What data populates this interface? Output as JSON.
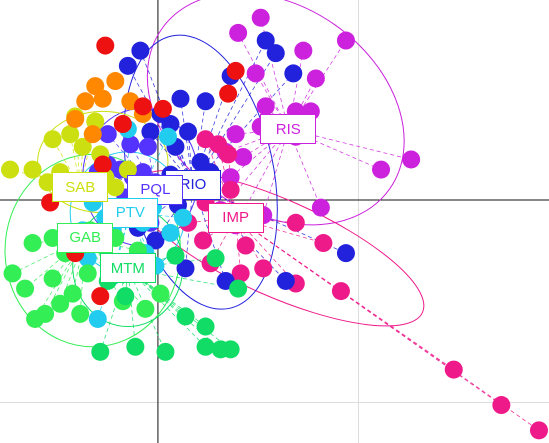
{
  "chart_data": {
    "type": "scatter",
    "title": "",
    "xlabel": "",
    "ylabel": "",
    "xlim": [
      -3.15,
      7.8
    ],
    "ylim": [
      -4.8,
      3.95
    ],
    "origin": [
      0,
      0
    ],
    "grid": {
      "x": [
        4
      ],
      "y": [
        -4,
        4
      ]
    },
    "legend": "none",
    "groups": [
      {
        "label": "RIS",
        "color": "#cc22dd",
        "center": [
          2.6,
          1.4
        ],
        "ellipse": {
          "cx": 2.35,
          "cy": 1.8,
          "rx": 2.05,
          "ry": 2.75,
          "angle": 55
        },
        "points": [
          [
            2.05,
            3.6
          ],
          [
            1.6,
            3.3
          ],
          [
            3.75,
            3.15
          ],
          [
            2.9,
            2.95
          ],
          [
            3.15,
            2.4
          ],
          [
            1.95,
            2.5
          ],
          [
            2.15,
            1.85
          ],
          [
            2.05,
            1.45
          ],
          [
            2.75,
            1.75
          ],
          [
            3.05,
            1.75
          ],
          [
            2.75,
            1.25
          ],
          [
            1.55,
            1.3
          ],
          [
            1.35,
            0.95
          ],
          [
            1.7,
            0.85
          ],
          [
            1.45,
            0.45
          ],
          [
            5.05,
            0.8
          ],
          [
            4.45,
            0.6
          ],
          [
            3.25,
            -0.15
          ],
          [
            2.1,
            -0.3
          ],
          [
            1.55,
            -0.5
          ],
          [
            1.25,
            -0.2
          ]
        ]
      },
      {
        "label": "IMP",
        "color": "#ee1a8a",
        "center": [
          1.55,
          -0.35
        ],
        "ellipse": {
          "cx": 2.4,
          "cy": -0.95,
          "rx": 3.15,
          "ry": 0.95,
          "angle": -24
        },
        "points": [
          [
            0.95,
            -0.05
          ],
          [
            1.35,
            -0.25
          ],
          [
            2.75,
            -0.45
          ],
          [
            3.3,
            -0.85
          ],
          [
            1.75,
            -0.9
          ],
          [
            2.1,
            -1.35
          ],
          [
            1.65,
            -1.45
          ],
          [
            3.65,
            -1.8
          ],
          [
            2.75,
            -1.65
          ],
          [
            1.05,
            -1.25
          ],
          [
            0.9,
            -0.8
          ],
          [
            0.6,
            -0.45
          ],
          [
            1.45,
            0.2
          ],
          [
            0.85,
            0.35
          ],
          [
            1.4,
            0.9
          ],
          [
            1.2,
            1.1
          ],
          [
            0.95,
            1.2
          ],
          [
            5.9,
            -3.35
          ],
          [
            6.85,
            -4.05
          ],
          [
            7.6,
            -4.55
          ]
        ]
      },
      {
        "label": "RIO",
        "color": "#2222dd",
        "center": [
          0.7,
          0.3
        ],
        "ellipse": {
          "cx": 0.85,
          "cy": 0.55,
          "rx": 1.45,
          "ry": 2.75,
          "angle": 12
        },
        "points": [
          [
            2.15,
            3.15
          ],
          [
            2.35,
            2.9
          ],
          [
            2.7,
            2.5
          ],
          [
            -0.6,
            2.65
          ],
          [
            -0.35,
            2.95
          ],
          [
            1.45,
            2.45
          ],
          [
            0.95,
            1.95
          ],
          [
            0.45,
            2.0
          ],
          [
            0.05,
            1.7
          ],
          [
            -0.15,
            1.35
          ],
          [
            0.35,
            1.05
          ],
          [
            0.6,
            1.35
          ],
          [
            0.85,
            0.75
          ],
          [
            1.05,
            0.55
          ],
          [
            0.25,
            0.5
          ],
          [
            -0.1,
            0.3
          ],
          [
            0.4,
            -0.1
          ],
          [
            -0.4,
            -0.55
          ],
          [
            -0.05,
            -0.8
          ],
          [
            0.55,
            -1.35
          ],
          [
            1.35,
            -1.6
          ],
          [
            2.55,
            -1.6
          ],
          [
            3.75,
            -1.05
          ],
          [
            0.25,
            1.5
          ]
        ]
      },
      {
        "label": "PQL",
        "color": "#5533ff",
        "center": [
          -0.05,
          0.2
        ],
        "ellipse": {
          "cx": -0.35,
          "cy": 0.45,
          "rx": 1.15,
          "ry": 1.35,
          "angle": 0
        },
        "points": [
          [
            -1.2,
            0.55
          ],
          [
            -1.0,
            0.7
          ],
          [
            -0.75,
            0.6
          ],
          [
            -0.5,
            0.45
          ],
          [
            -0.3,
            0.55
          ],
          [
            -0.05,
            0.35
          ],
          [
            0.15,
            0.2
          ],
          [
            -0.65,
            0.05
          ],
          [
            -0.35,
            -0.05
          ],
          [
            -0.95,
            -0.25
          ],
          [
            -0.15,
            -0.45
          ],
          [
            -1.0,
            1.3
          ],
          [
            -0.55,
            1.1
          ],
          [
            -0.2,
            1.05
          ]
        ]
      },
      {
        "label": "PTV",
        "color": "#22ccee",
        "center": [
          -0.55,
          -0.25
        ],
        "ellipse": {
          "cx": -0.6,
          "cy": -0.25,
          "rx": 1.15,
          "ry": 1.2,
          "angle": 0
        },
        "points": [
          [
            -1.55,
            0.2
          ],
          [
            -1.3,
            -0.05
          ],
          [
            -1.05,
            -0.35
          ],
          [
            -0.8,
            -0.15
          ],
          [
            -0.55,
            -0.25
          ],
          [
            -0.3,
            -0.45
          ],
          [
            -0.1,
            -0.15
          ],
          [
            -0.9,
            -0.6
          ],
          [
            -1.5,
            -0.6
          ],
          [
            -1.4,
            -1.15
          ],
          [
            -0.85,
            -1.25
          ],
          [
            -0.25,
            -1.05
          ],
          [
            0.25,
            -0.65
          ],
          [
            0.2,
            0.1
          ],
          [
            -0.6,
            1.4
          ],
          [
            0.2,
            1.25
          ],
          [
            -0.9,
            -1.5
          ],
          [
            -1.2,
            -2.35
          ],
          [
            -0.05,
            -1.3
          ],
          [
            0.5,
            -0.35
          ]
        ]
      },
      {
        "label": "SAB",
        "color": "#cce011",
        "center": [
          -1.55,
          0.25
        ],
        "ellipse": {
          "cx": -1.1,
          "cy": 0.75,
          "rx": 1.3,
          "ry": 1.0,
          "angle": 0
        },
        "points": [
          [
            -2.95,
            0.6
          ],
          [
            -2.5,
            0.6
          ],
          [
            -2.2,
            0.35
          ],
          [
            -1.95,
            0.55
          ],
          [
            -1.75,
            1.3
          ],
          [
            -1.5,
            1.05
          ],
          [
            -1.25,
            1.55
          ],
          [
            -1.4,
            0.3
          ],
          [
            -1.05,
            0.45
          ],
          [
            -2.1,
            1.2
          ],
          [
            -1.65,
            1.65
          ],
          [
            -1.15,
            0.9
          ],
          [
            -0.85,
            0.25
          ],
          [
            -0.6,
            0.6
          ]
        ]
      },
      {
        "label": "GAB",
        "color": "#33ee55",
        "center": [
          -1.45,
          -0.75
        ],
        "ellipse": {
          "cx": -1.3,
          "cy": -1.0,
          "rx": 1.75,
          "ry": 1.9,
          "angle": 0
        },
        "points": [
          [
            -2.5,
            -0.85
          ],
          [
            -2.1,
            -0.75
          ],
          [
            -1.85,
            -1.05
          ],
          [
            -1.6,
            -0.8
          ],
          [
            -1.35,
            -0.6
          ],
          [
            -1.1,
            -0.9
          ],
          [
            -0.85,
            -0.75
          ],
          [
            -2.1,
            -1.55
          ],
          [
            -1.7,
            -1.85
          ],
          [
            -1.4,
            -1.45
          ],
          [
            -2.65,
            -1.75
          ],
          [
            -2.9,
            -1.45
          ],
          [
            -0.4,
            -1.0
          ],
          [
            0.05,
            -1.85
          ],
          [
            -0.25,
            -2.15
          ],
          [
            -0.7,
            -2.0
          ],
          [
            -1.55,
            -2.25
          ],
          [
            -1.95,
            -2.05
          ],
          [
            -2.25,
            -2.25
          ],
          [
            -2.45,
            -2.35
          ]
        ]
      },
      {
        "label": "MTM",
        "color": "#11dd66",
        "center": [
          -0.6,
          -1.35
        ],
        "ellipse": {
          "cx": -0.6,
          "cy": -1.3,
          "rx": 1.1,
          "ry": 1.2,
          "angle": 0
        },
        "points": [
          [
            -0.3,
            -1.3
          ],
          [
            0.35,
            -1.1
          ],
          [
            1.15,
            -1.15
          ],
          [
            0.55,
            -2.3
          ],
          [
            0.95,
            -2.5
          ],
          [
            1.6,
            -1.75
          ],
          [
            -0.45,
            -2.9
          ],
          [
            0.15,
            -3.0
          ],
          [
            0.95,
            -2.9
          ],
          [
            1.25,
            -2.95
          ],
          [
            1.45,
            -2.95
          ],
          [
            -1.15,
            -3.0
          ],
          [
            -0.65,
            -1.9
          ],
          [
            -1.0,
            -1.6
          ]
        ]
      },
      {
        "label": "",
        "color": "#ff8800",
        "center": [
          -1.4,
          1.5
        ],
        "points": [
          [
            -1.45,
            1.95
          ],
          [
            -1.25,
            2.25
          ],
          [
            -0.85,
            2.35
          ],
          [
            -1.1,
            2.0
          ],
          [
            -0.55,
            1.95
          ],
          [
            -1.65,
            1.6
          ],
          [
            -0.3,
            1.7
          ],
          [
            -1.3,
            1.3
          ]
        ]
      },
      {
        "label": "",
        "color": "#ee1111",
        "center": [
          -0.6,
          1.8
        ],
        "points": [
          [
            -1.05,
            3.05
          ],
          [
            1.55,
            2.55
          ],
          [
            1.4,
            2.1
          ],
          [
            -0.3,
            1.85
          ],
          [
            0.1,
            1.8
          ],
          [
            -2.15,
            -0.05
          ],
          [
            -1.1,
            0.7
          ],
          [
            -0.7,
            1.5
          ],
          [
            -1.65,
            -1.05
          ],
          [
            -1.15,
            -1.9
          ]
        ]
      }
    ]
  }
}
